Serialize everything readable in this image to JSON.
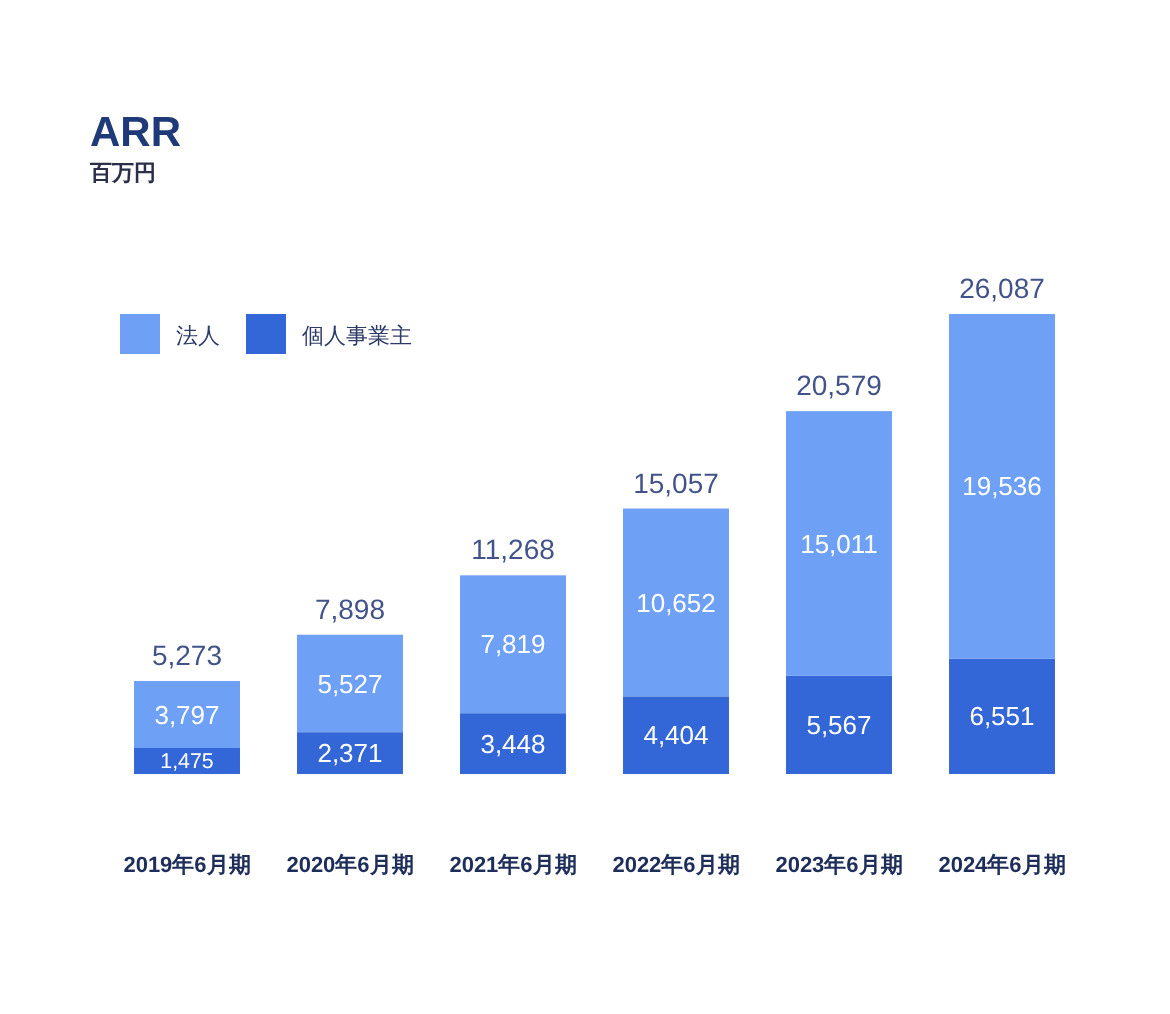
{
  "chart_data": {
    "type": "bar",
    "title": "ARR",
    "subtitle": "百万円",
    "categories": [
      "2019年6月期",
      "2020年6月期",
      "2021年6月期",
      "2022年6月期",
      "2023年6月期",
      "2024年6月期"
    ],
    "stacked": true,
    "series": [
      {
        "name": "個人事業主",
        "color": "#3366d6",
        "values": [
          1475,
          2371,
          3448,
          4404,
          5567,
          6551
        ],
        "value_labels": [
          "1,475",
          "2,371",
          "3,448",
          "4,404",
          "5,567",
          "6,551"
        ]
      },
      {
        "name": "法人",
        "color": "#6ea0f6",
        "values": [
          3797,
          5527,
          7819,
          10652,
          15011,
          19536
        ],
        "value_labels": [
          "3,797",
          "5,527",
          "7,819",
          "10,652",
          "15,011",
          "19,536"
        ]
      }
    ],
    "totals": [
      "5,273",
      "7,898",
      "11,268",
      "15,057",
      "20,579",
      "26,087"
    ],
    "legend": "top left",
    "tick_labels": "x"
  }
}
